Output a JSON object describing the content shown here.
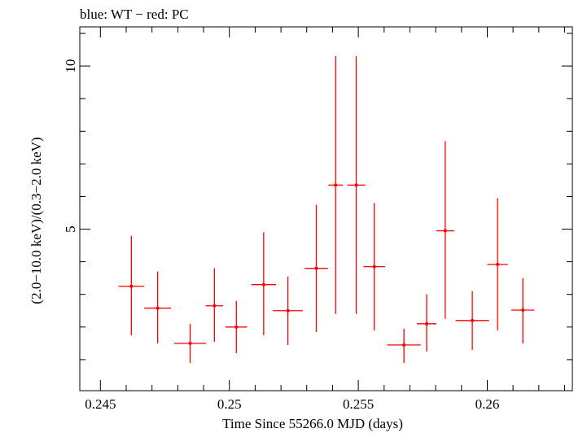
{
  "chart_data": {
    "type": "scatter",
    "title": "blue: WT − red: PC",
    "xlabel": "Time Since 55266.0 MJD (days)",
    "ylabel": "(2.0−10.0 keV)/(0.3−2.0 keV)",
    "xlim": [
      0.2442,
      0.2633
    ],
    "ylim": [
      0.05,
      11.2
    ],
    "x_ticks": [
      {
        "value": 0.245,
        "label": "0.245"
      },
      {
        "value": 0.25,
        "label": "0.25"
      },
      {
        "value": 0.255,
        "label": "0.255"
      },
      {
        "value": 0.26,
        "label": "0.26"
      }
    ],
    "y_ticks": [
      {
        "value": 5,
        "label": "5"
      },
      {
        "value": 10,
        "label": "10"
      }
    ],
    "grid": false,
    "series": [
      {
        "name": "PC",
        "color": "#ff0000",
        "points": [
          {
            "x": 0.2462,
            "xerr": 0.0005,
            "y": 3.25,
            "ylo": 1.75,
            "yhi": 4.8
          },
          {
            "x": 0.24722,
            "xerr": 0.00052,
            "y": 2.58,
            "ylo": 1.5,
            "yhi": 3.7
          },
          {
            "x": 0.24848,
            "xerr": 0.00062,
            "y": 1.5,
            "ylo": 0.9,
            "yhi": 2.1
          },
          {
            "x": 0.24942,
            "xerr": 0.00034,
            "y": 2.65,
            "ylo": 1.55,
            "yhi": 3.8
          },
          {
            "x": 0.25027,
            "xerr": 0.00042,
            "y": 2.0,
            "ylo": 1.2,
            "yhi": 2.8
          },
          {
            "x": 0.25133,
            "xerr": 0.00048,
            "y": 3.3,
            "ylo": 1.75,
            "yhi": 4.9
          },
          {
            "x": 0.25227,
            "xerr": 0.00058,
            "y": 2.5,
            "ylo": 1.45,
            "yhi": 3.55
          },
          {
            "x": 0.25337,
            "xerr": 0.00045,
            "y": 3.8,
            "ylo": 1.85,
            "yhi": 5.75
          },
          {
            "x": 0.25412,
            "xerr": 0.00028,
            "y": 6.35,
            "ylo": 2.4,
            "yhi": 10.3
          },
          {
            "x": 0.25492,
            "xerr": 0.00035,
            "y": 6.35,
            "ylo": 2.4,
            "yhi": 10.3
          },
          {
            "x": 0.25562,
            "xerr": 0.00042,
            "y": 3.85,
            "ylo": 1.9,
            "yhi": 5.8
          },
          {
            "x": 0.25677,
            "xerr": 0.00065,
            "y": 1.45,
            "ylo": 0.9,
            "yhi": 1.95
          },
          {
            "x": 0.25765,
            "xerr": 0.00038,
            "y": 2.1,
            "ylo": 1.25,
            "yhi": 3.0
          },
          {
            "x": 0.25837,
            "xerr": 0.00035,
            "y": 4.95,
            "ylo": 2.25,
            "yhi": 7.7
          },
          {
            "x": 0.25942,
            "xerr": 0.00065,
            "y": 2.2,
            "ylo": 1.3,
            "yhi": 3.1
          },
          {
            "x": 0.2604,
            "xerr": 0.0004,
            "y": 3.92,
            "ylo": 1.9,
            "yhi": 5.95
          },
          {
            "x": 0.26138,
            "xerr": 0.00045,
            "y": 2.52,
            "ylo": 1.5,
            "yhi": 3.5
          }
        ]
      }
    ]
  }
}
